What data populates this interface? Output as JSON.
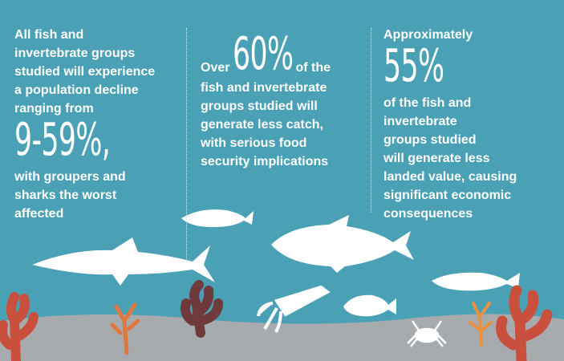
{
  "columns": [
    {
      "lines_before": [
        "All fish and",
        "invertebrate groups",
        "studied will experience",
        "a population decline",
        "ranging from"
      ],
      "highlight": "9-59%,",
      "lines_after": [
        "with groupers and",
        "sharks the worst",
        "affected"
      ]
    },
    {
      "prefix": "Over",
      "highlight": "60%",
      "suffix": "of the",
      "lines_after": [
        "fish and invertebrate",
        "groups studied will",
        "generate less catch,",
        "with serious food",
        "security implications"
      ]
    },
    {
      "lines_before": [
        "Approximately"
      ],
      "highlight": "55%",
      "lines_after": [
        "of the fish and",
        "invertebrate",
        "groups studied",
        "will generate less",
        "landed value, causing",
        "significant economic",
        "consequences"
      ]
    }
  ]
}
